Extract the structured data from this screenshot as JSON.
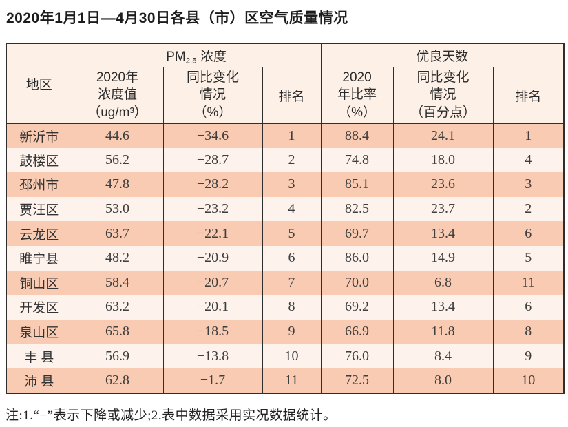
{
  "page": {
    "note": "注:1.“−”表示下降或减少;2.表中数据采用实况数据统计。"
  },
  "colors": {
    "row_odd": "#f8cbb2",
    "row_even": "#fdf3ec",
    "header_bg": "#fdf0e7",
    "border": "#2e2e2e"
  },
  "chart_data": {
    "type": "table",
    "title": "2020年1月1日—4月30日各县（市）区空气质量情况",
    "group_headers": {
      "region": "地区",
      "pm": {
        "prefix": "PM",
        "sub": "2.5",
        "suffix": " 浓度"
      },
      "good_days": "优良天数"
    },
    "sub_headers": {
      "pm_value": [
        "2020年",
        "浓度值",
        "（ug/m³）"
      ],
      "pm_change": [
        "同比变化",
        "情况",
        "（%）"
      ],
      "pm_rank": "排名",
      "good_ratio": [
        "2020",
        "年比率",
        "（%）"
      ],
      "good_change": [
        "同比变化",
        "情况",
        "（百分点）"
      ],
      "good_rank": "排名"
    },
    "rows": [
      {
        "region": "新沂市",
        "pm_value": "44.6",
        "pm_change": "−34.6",
        "pm_rank": "1",
        "good_ratio": "88.4",
        "good_change": "24.1",
        "good_rank": "1"
      },
      {
        "region": "鼓楼区",
        "pm_value": "56.2",
        "pm_change": "−28.7",
        "pm_rank": "2",
        "good_ratio": "74.8",
        "good_change": "18.0",
        "good_rank": "4"
      },
      {
        "region": "邳州市",
        "pm_value": "47.8",
        "pm_change": "−28.2",
        "pm_rank": "3",
        "good_ratio": "85.1",
        "good_change": "23.6",
        "good_rank": "3"
      },
      {
        "region": "贾汪区",
        "pm_value": "53.0",
        "pm_change": "−23.2",
        "pm_rank": "4",
        "good_ratio": "82.5",
        "good_change": "23.7",
        "good_rank": "2"
      },
      {
        "region": "云龙区",
        "pm_value": "63.7",
        "pm_change": "−22.1",
        "pm_rank": "5",
        "good_ratio": "69.7",
        "good_change": "13.4",
        "good_rank": "6"
      },
      {
        "region": "睢宁县",
        "pm_value": "48.2",
        "pm_change": "−20.9",
        "pm_rank": "6",
        "good_ratio": "86.0",
        "good_change": "14.9",
        "good_rank": "5"
      },
      {
        "region": "铜山区",
        "pm_value": "58.4",
        "pm_change": "−20.7",
        "pm_rank": "7",
        "good_ratio": "70.0",
        "good_change": "6.8",
        "good_rank": "11"
      },
      {
        "region": "开发区",
        "pm_value": "63.2",
        "pm_change": "−20.1",
        "pm_rank": "8",
        "good_ratio": "69.2",
        "good_change": "13.4",
        "good_rank": "6"
      },
      {
        "region": "泉山区",
        "pm_value": "65.8",
        "pm_change": "−18.5",
        "pm_rank": "9",
        "good_ratio": "66.9",
        "good_change": "11.8",
        "good_rank": "8"
      },
      {
        "region": "丰 县",
        "pm_value": "56.9",
        "pm_change": "−13.8",
        "pm_rank": "10",
        "good_ratio": "76.0",
        "good_change": "8.4",
        "good_rank": "9"
      },
      {
        "region": "沛 县",
        "pm_value": "62.8",
        "pm_change": "−1.7",
        "pm_rank": "11",
        "good_ratio": "72.5",
        "good_change": "8.0",
        "good_rank": "10"
      }
    ]
  }
}
